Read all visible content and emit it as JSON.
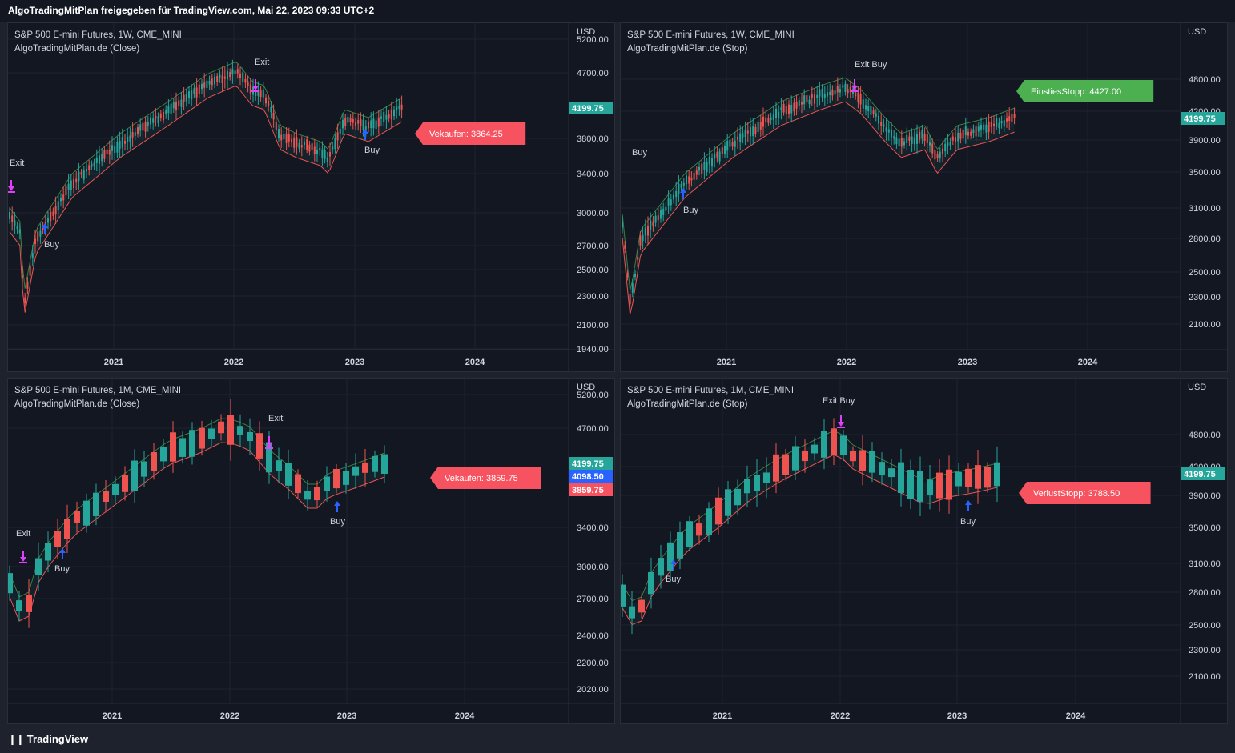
{
  "header": {
    "text": "AlgoTradingMitPlan freigegeben für TradingView.com, Mai 22, 2023 09:33 UTC+2"
  },
  "footer": {
    "brand": "TradingView",
    "logo_icon": "tradingview-logo-icon"
  },
  "colors": {
    "bull": "#26a69a",
    "bear": "#ef5350",
    "green_band": "#4caf50",
    "buy_arrow": "#2962ff",
    "exit_arrow": "#e040fb",
    "label_red": "#f7525f",
    "label_green": "#4caf50",
    "label_blue": "#2962ff"
  },
  "panels": [
    {
      "title": "S&P 500 E-mini Futures, 1W, CME_MINI",
      "indicator": "AlgoTradingMitPlan.de (Close)",
      "currency": "USD",
      "price_ticks": [
        "5200.00",
        "4700.00",
        "3800.00",
        "3400.00",
        "3000.00",
        "2700.00",
        "2500.00",
        "2300.00",
        "2100.00",
        "1940.00"
      ],
      "year_ticks": [
        "2021",
        "2022",
        "2023",
        "2024"
      ],
      "price_tags": [
        {
          "text": "4199.75",
          "color": "#26a69a"
        }
      ],
      "callout": {
        "text": "Vekaufen: 3864.25",
        "color": "#f7525f"
      },
      "markers": [
        "Exit",
        "Exit",
        "Buy",
        "Buy"
      ]
    },
    {
      "title": "S&P 500 E-mini Futures, 1W, CME_MINI",
      "indicator": "AlgoTradingMitPlan.de (Stop)",
      "currency": "USD",
      "price_ticks": [
        "4800.00",
        "4200.00",
        "3900.00",
        "3500.00",
        "3100.00",
        "2800.00",
        "2500.00",
        "2300.00",
        "2100.00"
      ],
      "year_ticks": [
        "2021",
        "2022",
        "2023",
        "2024"
      ],
      "price_tags": [
        {
          "text": "4199.75",
          "color": "#26a69a"
        }
      ],
      "callout": {
        "text": "EinstiesStopp: 4427.00",
        "color": "#4caf50"
      },
      "markers": [
        "Exit Buy",
        "Buy",
        "Buy"
      ]
    },
    {
      "title": "S&P 500 E-mini Futures, 1M, CME_MINI",
      "indicator": "AlgoTradingMitPlan.de (Close)",
      "currency": "USD",
      "price_ticks": [
        "5200.00",
        "4700.00",
        "3400.00",
        "3000.00",
        "2700.00",
        "2400.00",
        "2200.00",
        "2020.00"
      ],
      "year_ticks": [
        "2021",
        "2022",
        "2023",
        "2024"
      ],
      "price_tags": [
        {
          "text": "4199.75",
          "color": "#26a69a"
        },
        {
          "text": "4098.50",
          "color": "#2962ff"
        },
        {
          "text": "3859.75",
          "color": "#f7525f"
        }
      ],
      "callout": {
        "text": "Vekaufen: 3859.75",
        "color": "#f7525f"
      },
      "markers": [
        "Exit",
        "Exit",
        "Buy",
        "Buy"
      ]
    },
    {
      "title": "S&P 500 E-mini Futures, 1M, CME_MINI",
      "indicator": "AlgoTradingMitPlan.de (Stop)",
      "currency": "USD",
      "price_ticks": [
        "4800.00",
        "4200.00",
        "3900.00",
        "3500.00",
        "3100.00",
        "2800.00",
        "2500.00",
        "2300.00",
        "2100.00"
      ],
      "year_ticks": [
        "2021",
        "2022",
        "2023",
        "2024"
      ],
      "price_tags": [
        {
          "text": "4199.75",
          "color": "#26a69a"
        }
      ],
      "callout": {
        "text": "VerlustStopp: 3788.50",
        "color": "#f7525f"
      },
      "markers": [
        "Exit Buy",
        "Buy",
        "Buy"
      ]
    }
  ]
}
